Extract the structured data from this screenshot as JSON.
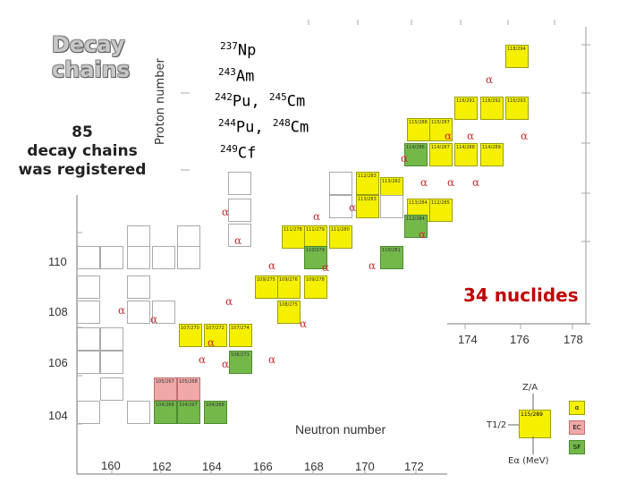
{
  "title": {
    "line1": "Decay",
    "line2": "chains"
  },
  "y_axis_label": "Proton number",
  "x_axis_label": "Neutron number",
  "summary": {
    "count": "85",
    "line2": "decay chains",
    "line3": "was registered"
  },
  "nuclides_count": "34 nuclides",
  "reactions": {
    "r1": {
      "mass": "237",
      "el": "Np"
    },
    "r2": {
      "mass": "243",
      "el": "Am"
    },
    "r3": {
      "mass1": "242",
      "el1": "Pu,",
      "mass2": "245",
      "el2": "Cm"
    },
    "r4": {
      "mass1": "244",
      "el1": "Pu,",
      "mass2": "248",
      "el2": "Cm"
    },
    "r5": {
      "mass": "249",
      "el": "Cf"
    }
  },
  "proton_ticks": [
    "110",
    "108",
    "106",
    "104"
  ],
  "neutron_ticks_bottom": [
    "160",
    "162",
    "164",
    "166",
    "168",
    "170",
    "172"
  ],
  "neutron_ticks_upper": [
    "174",
    "176",
    "178"
  ],
  "legend": {
    "za": "Z/A",
    "t_half": "T1/2",
    "e_alpha": "Eα (MeV)",
    "sample": "115/289",
    "yellow": "α",
    "pink": "EC",
    "green": "SF"
  },
  "alpha_symbol": "α",
  "cells": [
    {
      "t": "118/294",
      "s": "y"
    },
    {
      "t": "116/293",
      "s": "y"
    },
    {
      "t": "116/291",
      "s": "y"
    },
    {
      "t": "116/292",
      "s": "y"
    },
    {
      "t": "115/287",
      "s": "y"
    },
    {
      "t": "115/288",
      "s": "y"
    },
    {
      "t": "114/286",
      "s": "g"
    },
    {
      "t": "114/287",
      "s": "y"
    },
    {
      "t": "114/288",
      "s": "y"
    },
    {
      "t": "114/289",
      "s": "y"
    },
    {
      "t": "113/282",
      "s": "y"
    },
    {
      "t": "113/283",
      "s": "y"
    },
    {
      "t": "113/284",
      "s": "y"
    },
    {
      "t": "112/283",
      "s": "y"
    },
    {
      "t": "112/284",
      "s": "g"
    },
    {
      "t": "112/285",
      "s": "y"
    },
    {
      "t": "111/278",
      "s": "y"
    },
    {
      "t": "111/279",
      "s": "y"
    },
    {
      "t": "111/280",
      "s": "y"
    },
    {
      "t": "110/279",
      "s": "g"
    },
    {
      "t": "110/281",
      "s": "g"
    },
    {
      "t": "109/275",
      "s": "y"
    },
    {
      "t": "109/276",
      "s": "y"
    },
    {
      "t": "109/278",
      "s": "y"
    },
    {
      "t": "108/275",
      "s": "y"
    },
    {
      "t": "107/270",
      "s": "y"
    },
    {
      "t": "107/272",
      "s": "y"
    },
    {
      "t": "107/274",
      "s": "y"
    },
    {
      "t": "106/271",
      "s": "g"
    },
    {
      "t": "105/267",
      "s": "p"
    },
    {
      "t": "105/268",
      "s": "p"
    },
    {
      "t": "104/266",
      "s": "g"
    },
    {
      "t": "104/267",
      "s": "g"
    },
    {
      "t": "104/268",
      "s": "g"
    }
  ]
}
